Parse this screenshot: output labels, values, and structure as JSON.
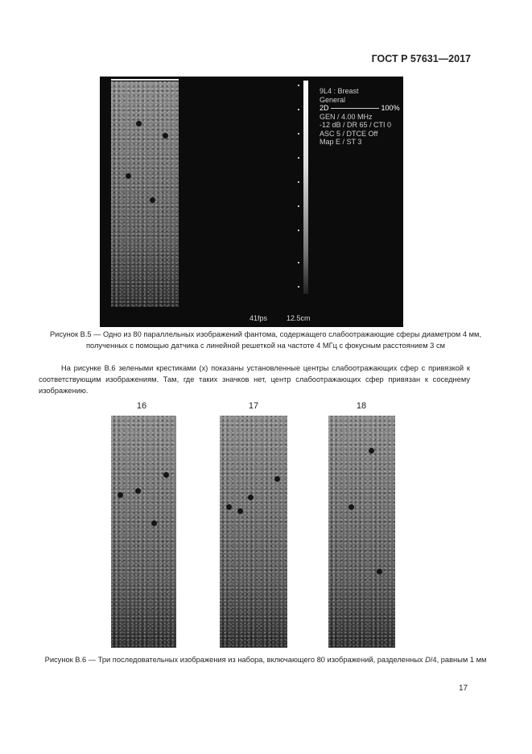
{
  "header": {
    "standard": "ГОСТ Р 57631—2017"
  },
  "figure_b5": {
    "overlay": {
      "probe": "9L4 : Breast",
      "preset": "General",
      "mode": "2D",
      "gain": "100%",
      "line1": "GEN / 4.00 MHz",
      "line2": "-12 dB / DR 65 / CTI 0",
      "line3": "ASC 5 / DTCE Off",
      "line4": "Map E / ST 3",
      "fps": "41fps",
      "depth": "12.5cm"
    },
    "caption": "Рисунок В.5 — Одно из 80 параллельных изображений фантома, содержащего слабоотражающие сферы диаметром 4 мм, полученных с помощью датчика с линейной решеткой на частоте 4 МГц с фокусным расстоянием 3 см"
  },
  "paragraph": "На рисунке В.6 зелеными крестиками (x) показаны установленные центры слабоотражающих сфер с привязкой к соответствующим изображениям. Там, где таких значков нет, центр слабоотражающих сфер привязан к соседнему изображению.",
  "figure_b6": {
    "labels": [
      "16",
      "17",
      "18"
    ],
    "caption_part1": "Рисунок В.6 — Три последовательных изображения из набора, включающего 80 изображений, разделенных ",
    "caption_italic": "D",
    "caption_part2": "/4, равным 1 мм"
  },
  "page_number": "17"
}
